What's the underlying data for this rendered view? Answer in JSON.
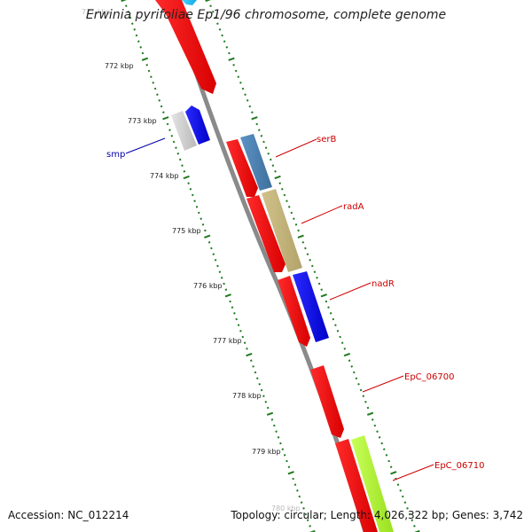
{
  "title": "Erwinia pyrifoliae Ep1/96 chromosome, complete genome",
  "footer": {
    "accession": "Accession: NC_012214",
    "summary": "Topology: circular; Length: 4,026,322 bp; Genes: 3,742"
  },
  "colors": {
    "background": "#ffffff",
    "backbone": "#8a8a8a",
    "tick": "#1f7a1f",
    "label_line": "#d00000",
    "label_text": "#cc0000",
    "label_text_blue": "#0000aa"
  },
  "ticks": {
    "labels": [
      "772 kbp",
      "773 kbp",
      "774 kbp",
      "775 kbp",
      "776 kbp",
      "777 kbp",
      "778 kbp",
      "779 kbp"
    ],
    "partial_top": "771 kbp",
    "partial_bottom": "780 kbp"
  },
  "gene_labels": [
    {
      "name": "serB",
      "color": "#cc0000"
    },
    {
      "name": "radA",
      "color": "#cc0000"
    },
    {
      "name": "nadR",
      "color": "#cc0000"
    },
    {
      "name": "EpC_06700",
      "color": "#cc0000"
    },
    {
      "name": "EpC_06710",
      "color": "#cc0000"
    },
    {
      "name": "smp",
      "color": "#0000aa"
    }
  ]
}
